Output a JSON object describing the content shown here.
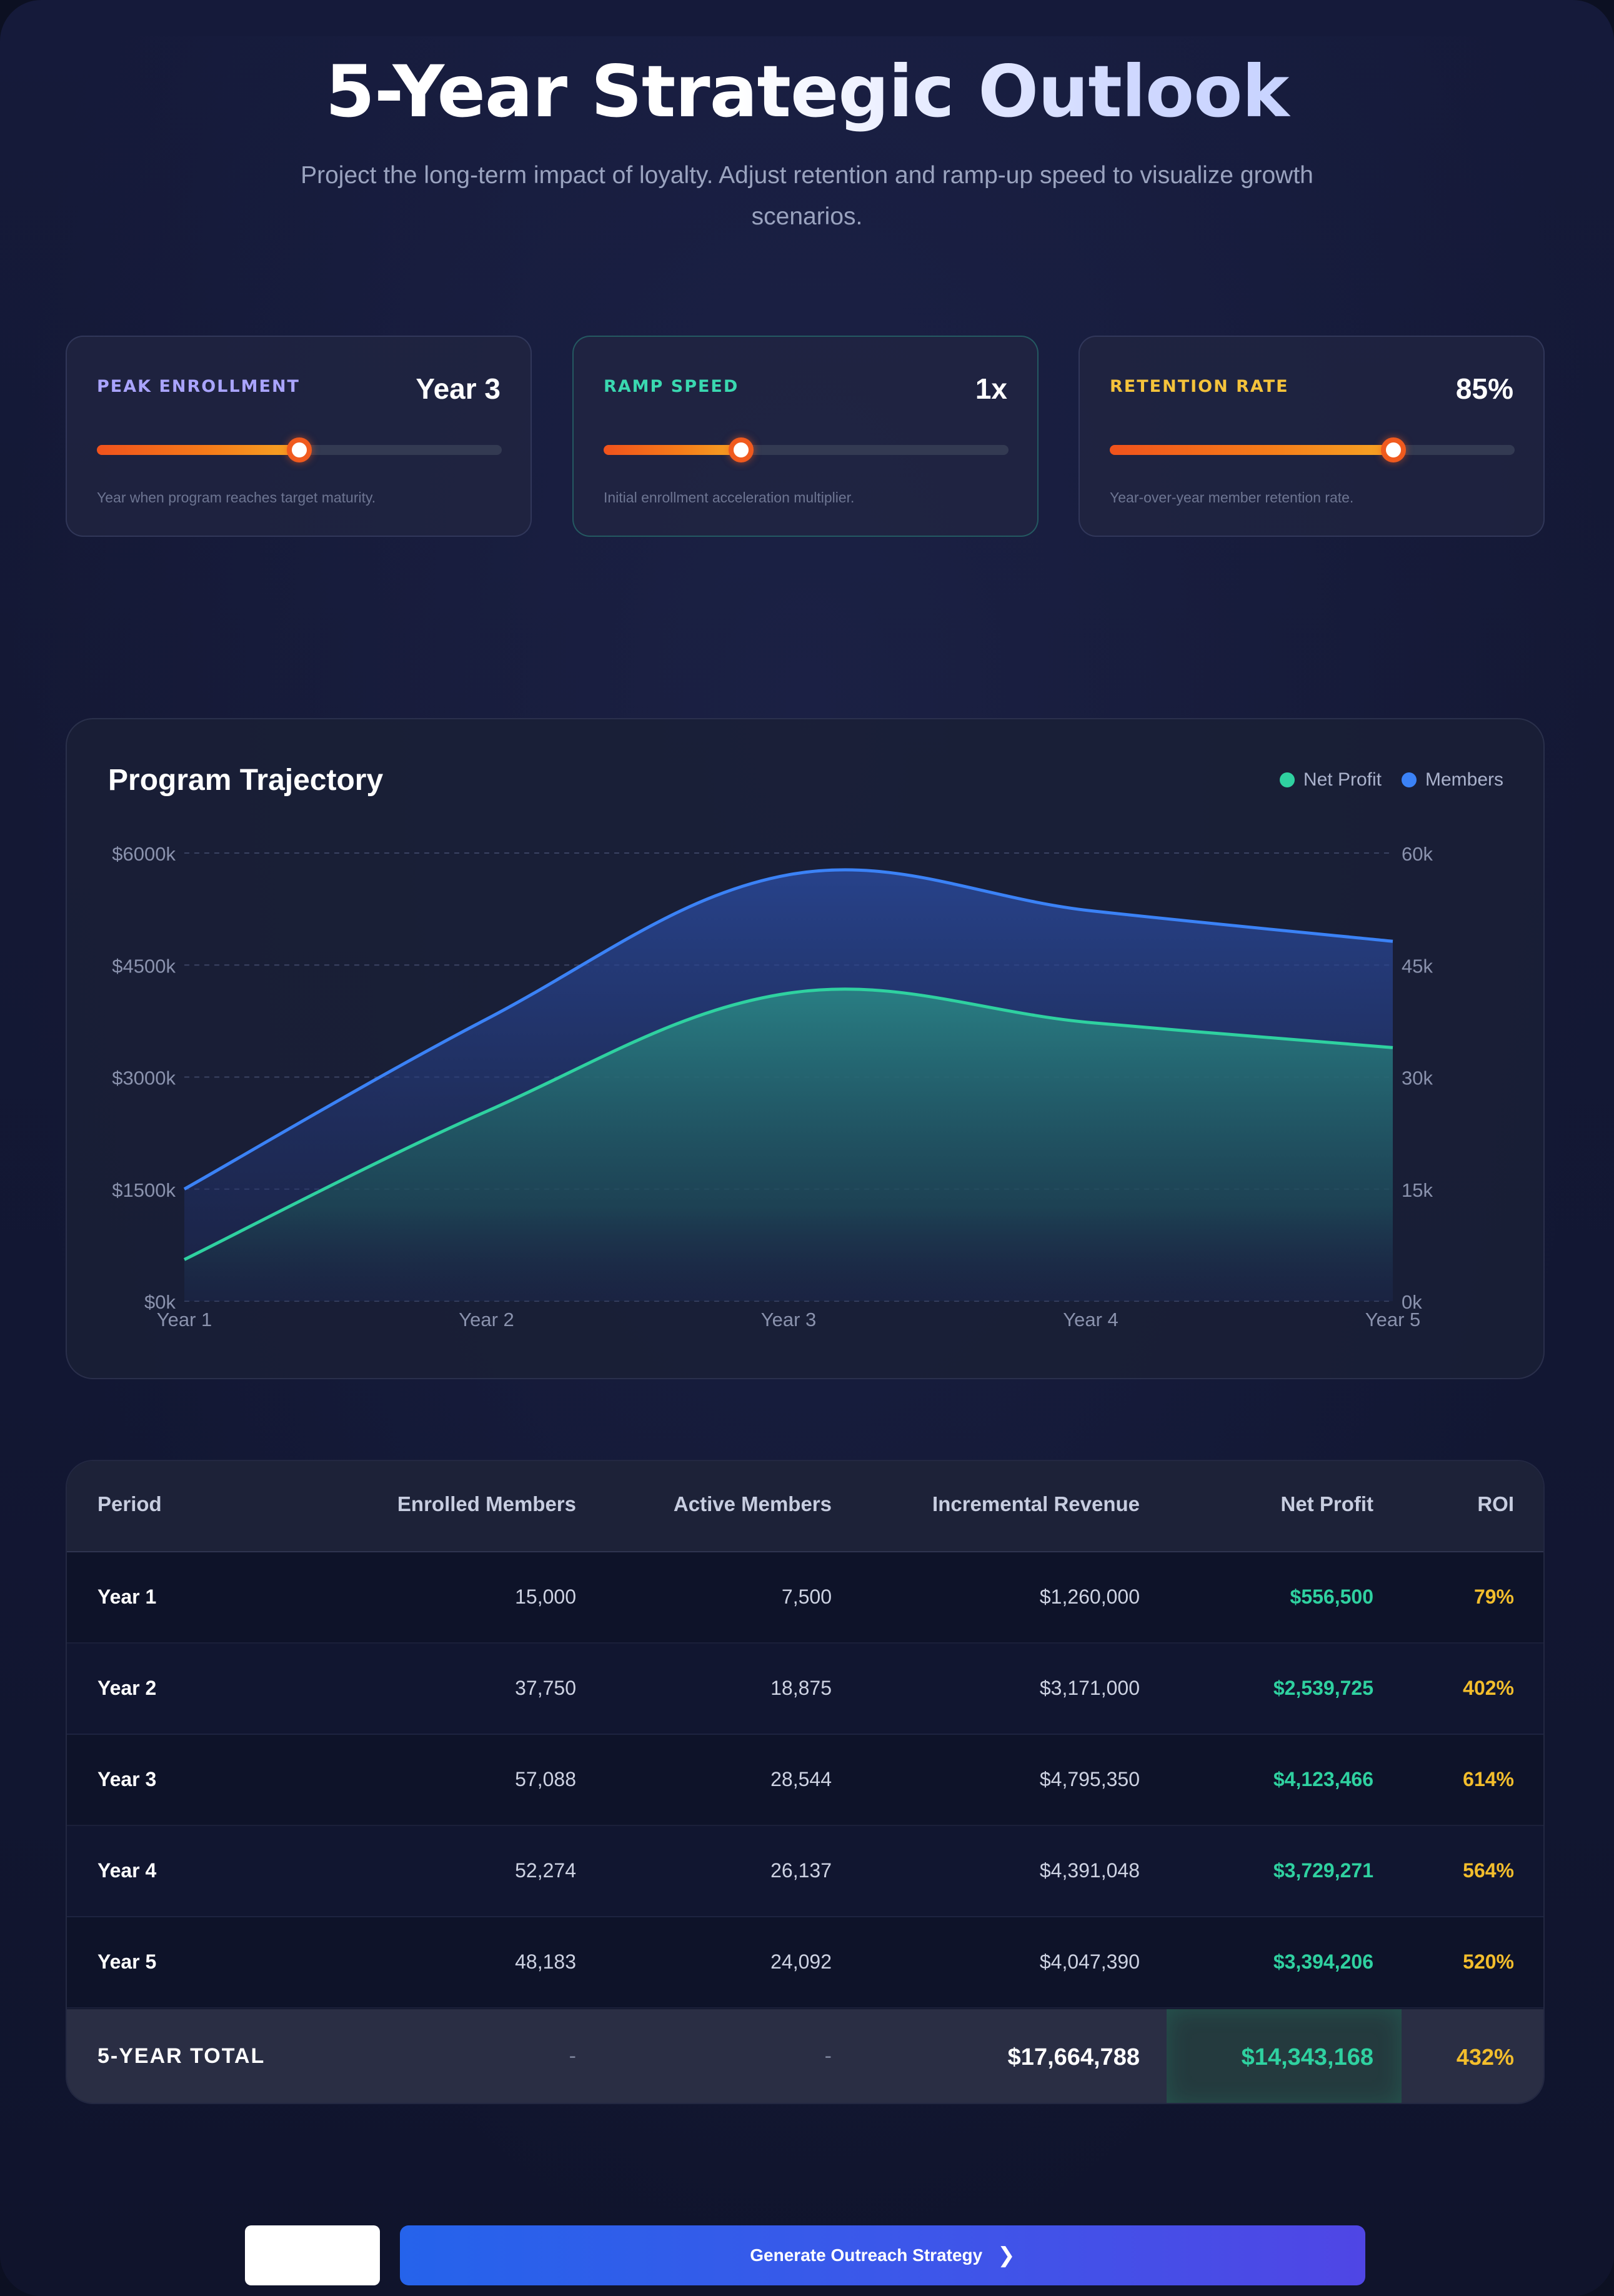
{
  "header": {
    "title": "5-Year Strategic Outlook",
    "subtitle": "Project the long-term impact of loyalty. Adjust retention and ramp-up speed to visualize growth scenarios."
  },
  "controls": [
    {
      "label": "PEAK ENROLLMENT",
      "value": "Year 3",
      "description": "Year when program reaches target maturity.",
      "slider_fraction": 0.5,
      "accent": "#a9a4ff"
    },
    {
      "label": "RAMP SPEED",
      "value": "1x",
      "description": "Initial enrollment acceleration multiplier.",
      "slider_fraction": 0.34,
      "accent": "#3ad8b0"
    },
    {
      "label": "RETENTION RATE",
      "value": "85%",
      "description": "Year-over-year member retention rate.",
      "slider_fraction": 0.7,
      "accent": "#f5c33b"
    }
  ],
  "chart_data": {
    "type": "area",
    "title": "Program Trajectory",
    "categories": [
      "Year 1",
      "Year 2",
      "Year 3",
      "Year 4",
      "Year 5"
    ],
    "y_left": {
      "ticks": [
        "$0k",
        "$1500k",
        "$3000k",
        "$4500k",
        "$6000k"
      ],
      "range": [
        0,
        6000
      ]
    },
    "y_right": {
      "ticks": [
        "0k",
        "15k",
        "30k",
        "45k",
        "60k"
      ],
      "range": [
        0,
        60
      ]
    },
    "series": [
      {
        "name": "Net Profit",
        "axis": "left",
        "values": [
          556.5,
          2539.7,
          4123.5,
          3729.3,
          3394.2
        ],
        "color": "#2fd1a0"
      },
      {
        "name": "Members",
        "axis": "right",
        "values": [
          15.0,
          37.75,
          57.09,
          52.27,
          48.18
        ],
        "color": "#3b82f6"
      }
    ],
    "grid": true,
    "legend": "top-right"
  },
  "table": {
    "headers": [
      "Period",
      "Enrolled Members",
      "Active Members",
      "Incremental Revenue",
      "Net Profit",
      "ROI"
    ],
    "rows": [
      [
        "Year 1",
        "15,000",
        "7,500",
        "$1,260,000",
        "$556,500",
        "79%"
      ],
      [
        "Year 2",
        "37,750",
        "18,875",
        "$3,171,000",
        "$2,539,725",
        "402%"
      ],
      [
        "Year 3",
        "57,088",
        "28,544",
        "$4,795,350",
        "$4,123,466",
        "614%"
      ],
      [
        "Year 4",
        "52,274",
        "26,137",
        "$4,391,048",
        "$3,729,271",
        "564%"
      ],
      [
        "Year 5",
        "48,183",
        "24,092",
        "$4,047,390",
        "$3,394,206",
        "520%"
      ]
    ],
    "total": {
      "label": "5-YEAR TOTAL",
      "enrolled": "-",
      "active": "-",
      "revenue": "$17,664,788",
      "profit": "$14,343,168",
      "roi": "432%"
    }
  },
  "footer": {
    "primary_button": "Generate Outreach Strategy",
    "primary_icon": "chevron-right-icon"
  }
}
